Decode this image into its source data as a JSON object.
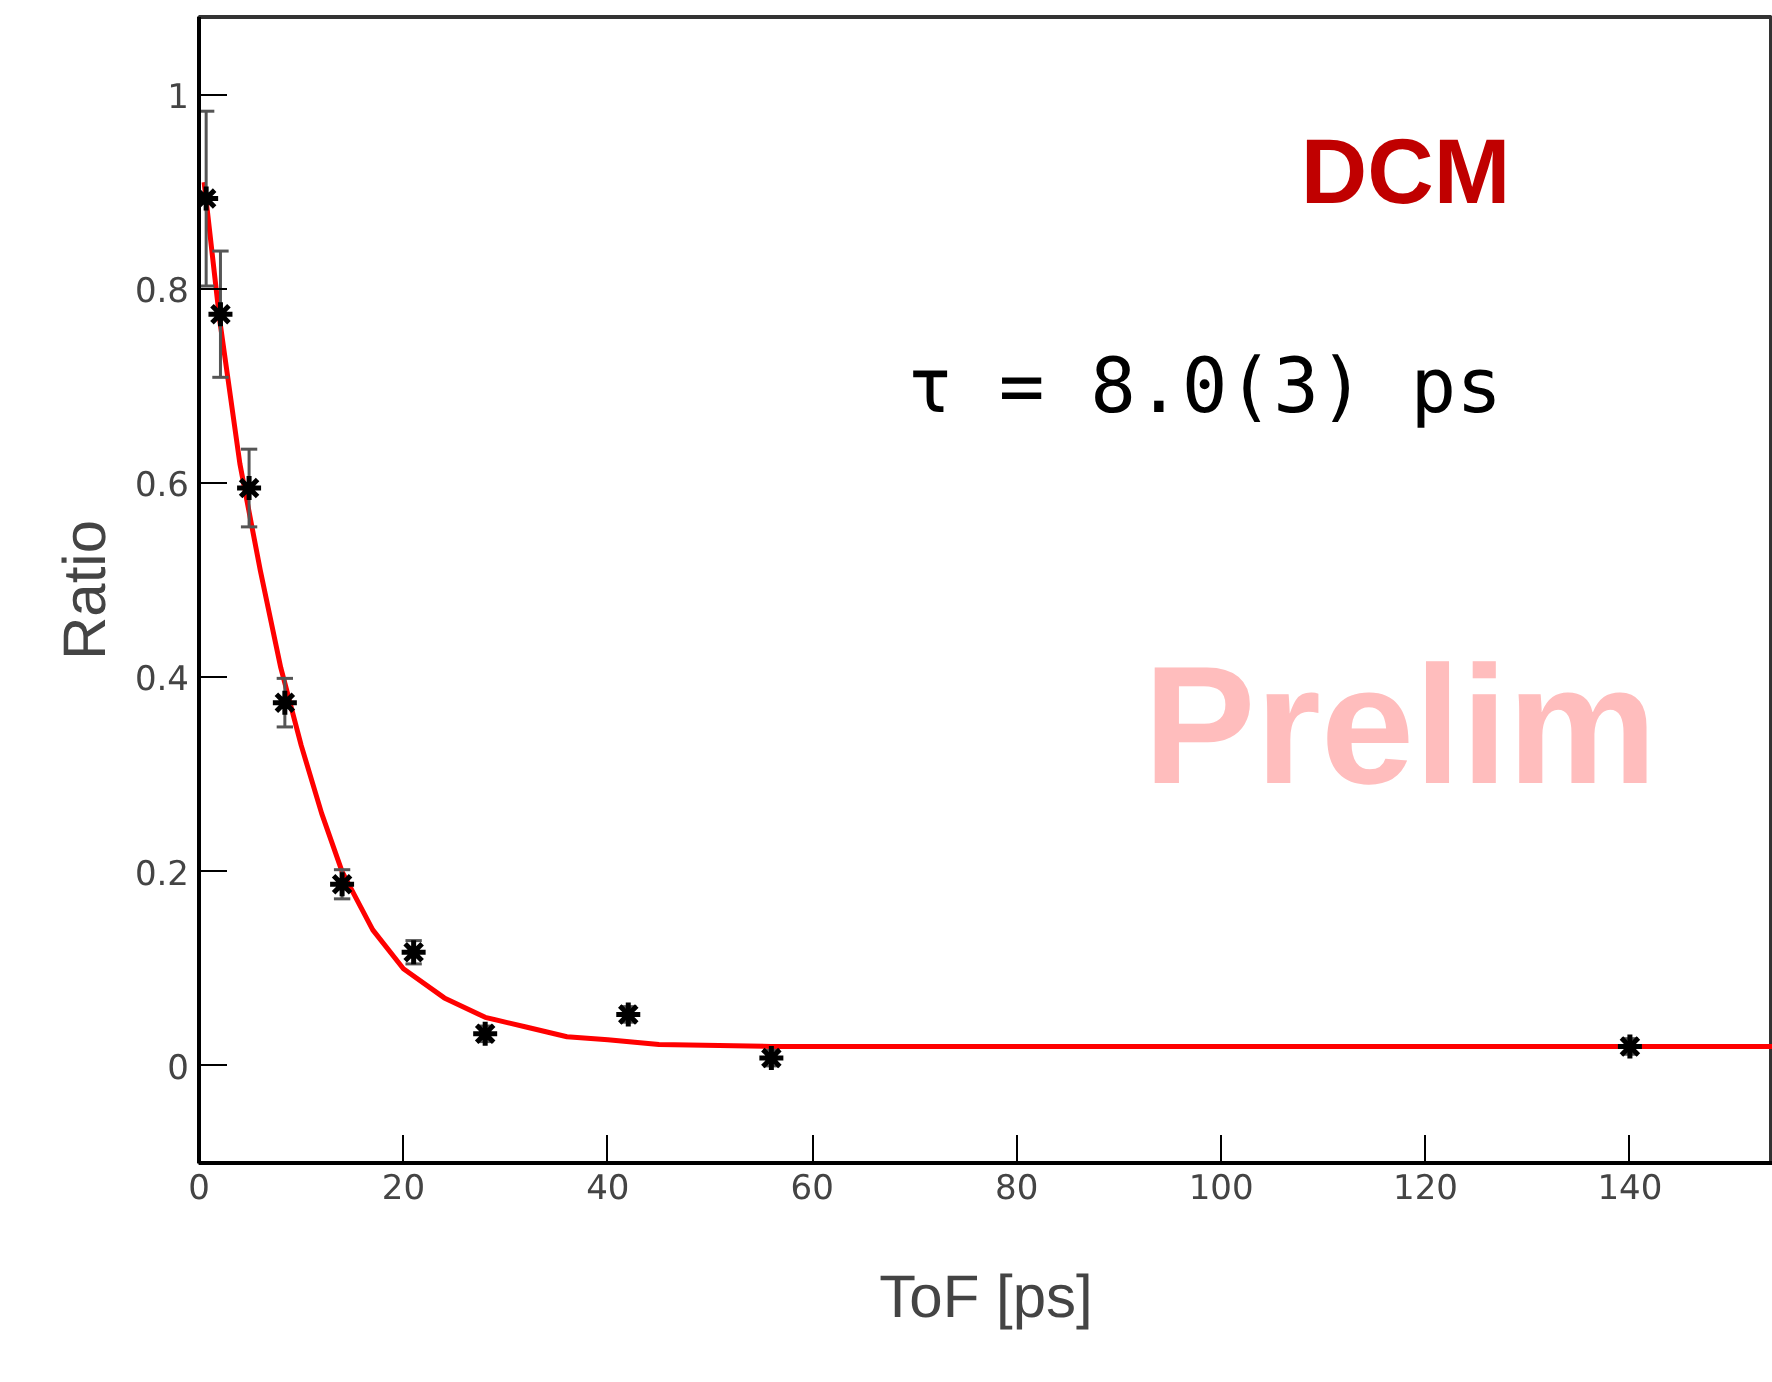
{
  "chart_data": {
    "type": "scatter",
    "xlabel": "ToF [ps]",
    "ylabel": "Ratio",
    "annotations": [
      "DCM",
      "τ = 8.0(3) ps",
      "Prelim"
    ],
    "xlim": [
      0,
      154
    ],
    "ylim": [
      -0.1,
      1.08
    ],
    "xticks": [
      0,
      20,
      40,
      60,
      80,
      100,
      120,
      140
    ],
    "yticks": [
      0,
      0.2,
      0.4,
      0.6,
      0.8,
      1
    ],
    "grid": false,
    "series": [
      {
        "marker": "cross",
        "color": "#000000",
        "x": [
          0.7,
          2.1,
          4.9,
          8.4,
          14,
          21,
          28,
          42,
          56,
          140
        ],
        "values": [
          0.893,
          0.774,
          0.595,
          0.374,
          0.187,
          0.117,
          0.033,
          0.053,
          0.008,
          0.02
        ],
        "errors": [
          0.09,
          0.065,
          0.04,
          0.025,
          0.015,
          0.012,
          0.008,
          0.008,
          0.008,
          0.008
        ]
      },
      {
        "type": "line",
        "color": "#ff0000",
        "line_style": "solid",
        "x": [
          0.5,
          2,
          4,
          6,
          8,
          10,
          12,
          14,
          17,
          20,
          24,
          28,
          32,
          36,
          40,
          45,
          56,
          154
        ],
        "values": [
          0.91,
          0.77,
          0.62,
          0.51,
          0.41,
          0.33,
          0.26,
          0.2,
          0.14,
          0.1,
          0.07,
          0.05,
          0.04,
          0.03,
          0.027,
          0.022,
          0.02,
          0.02
        ]
      }
    ]
  }
}
